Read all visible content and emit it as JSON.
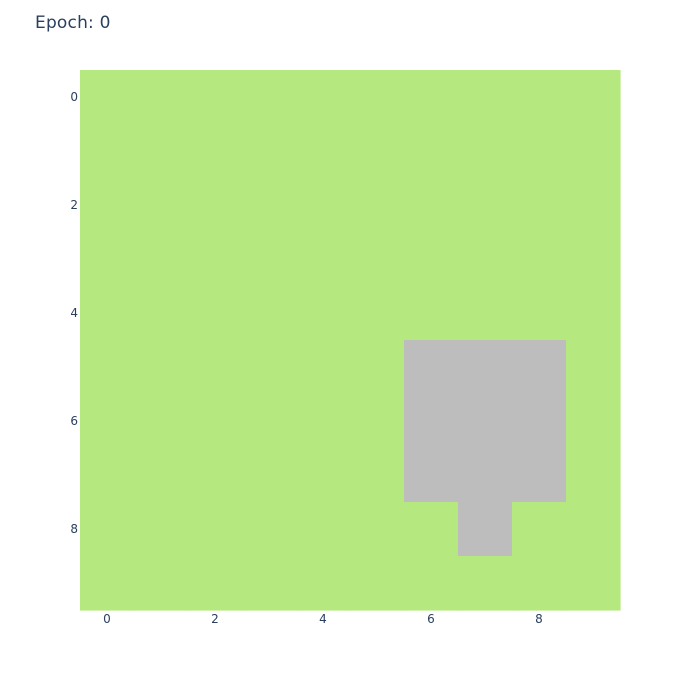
{
  "chart_data": {
    "type": "heatmap",
    "title": "Epoch: 0",
    "xlabel": "",
    "ylabel": "",
    "grid_size": [
      10,
      10
    ],
    "x_ticks": [
      0,
      2,
      4,
      6,
      8
    ],
    "y_ticks": [
      0,
      2,
      4,
      6,
      8
    ],
    "x_tick_labels": [
      "0",
      "2",
      "4",
      "6",
      "8"
    ],
    "y_tick_labels": [
      "0",
      "2",
      "4",
      "6",
      "8"
    ],
    "xlim": [
      -0.5,
      9.5
    ],
    "ylim": [
      -0.5,
      9.5
    ],
    "y_reversed": true,
    "grid": false,
    "colors": {
      "0": "#b6e880",
      "1": "#bdbdbd"
    },
    "values": [
      [
        0,
        0,
        0,
        0,
        0,
        0,
        0,
        0,
        0,
        0
      ],
      [
        0,
        0,
        0,
        0,
        0,
        0,
        0,
        0,
        0,
        0
      ],
      [
        0,
        0,
        0,
        0,
        0,
        0,
        0,
        0,
        0,
        0
      ],
      [
        0,
        0,
        0,
        0,
        0,
        0,
        0,
        0,
        0,
        0
      ],
      [
        0,
        0,
        0,
        0,
        0,
        0,
        0,
        0,
        0,
        0
      ],
      [
        0,
        0,
        0,
        0,
        0,
        0,
        1,
        1,
        1,
        0
      ],
      [
        0,
        0,
        0,
        0,
        0,
        0,
        1,
        1,
        1,
        0
      ],
      [
        0,
        0,
        0,
        0,
        0,
        0,
        1,
        1,
        1,
        0
      ],
      [
        0,
        0,
        0,
        0,
        0,
        0,
        0,
        1,
        0,
        0
      ],
      [
        0,
        0,
        0,
        0,
        0,
        0,
        0,
        0,
        0,
        0
      ]
    ]
  }
}
